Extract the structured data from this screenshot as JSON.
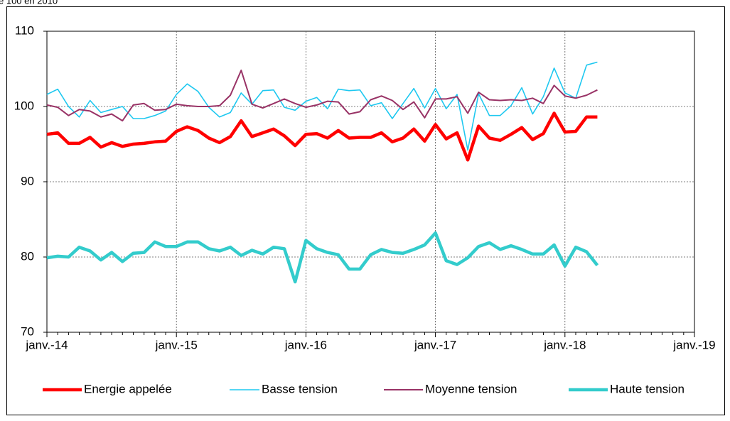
{
  "chart_data": {
    "type": "line",
    "subtitle": "e 100 en 2010",
    "categories": [
      "janv.-14",
      null,
      null,
      null,
      null,
      null,
      null,
      null,
      null,
      null,
      null,
      null,
      "janv.-15",
      null,
      null,
      null,
      null,
      null,
      null,
      null,
      null,
      null,
      null,
      null,
      "janv.-16",
      null,
      null,
      null,
      null,
      null,
      null,
      null,
      null,
      null,
      null,
      null,
      "janv.-17",
      null,
      null,
      null,
      null,
      null,
      null,
      null,
      null,
      null,
      null,
      null,
      "janv.-18",
      null,
      null,
      null,
      null,
      null,
      null,
      null,
      null,
      null,
      null,
      null,
      "janv.-19"
    ],
    "series": [
      {
        "name": "Energie appelée",
        "color": "#ff0000",
        "values": [
          96.3,
          96.5,
          95.1,
          95.1,
          95.9,
          94.6,
          95.2,
          94.7,
          95.0,
          95.1,
          95.3,
          95.4,
          96.7,
          97.3,
          96.8,
          95.8,
          95.2,
          96.0,
          98.1,
          96.0,
          96.5,
          97.0,
          96.1,
          94.8,
          96.3,
          96.4,
          95.8,
          96.8,
          95.8,
          95.9,
          95.9,
          96.5,
          95.3,
          95.8,
          97.0,
          95.4,
          97.6,
          95.7,
          96.5,
          92.9,
          97.4,
          95.8,
          95.5,
          96.3,
          97.2,
          95.6,
          96.4,
          99.1,
          96.6,
          96.7,
          98.6,
          98.6,
          null,
          null,
          null,
          null,
          null,
          null,
          null,
          null,
          null
        ]
      },
      {
        "name": "Basse tension",
        "color": "#1ec8f0",
        "values": [
          101.6,
          102.3,
          100.0,
          98.6,
          100.8,
          99.2,
          99.6,
          100.0,
          98.4,
          98.4,
          98.8,
          99.4,
          101.6,
          103.0,
          102.0,
          99.9,
          98.6,
          99.2,
          101.8,
          100.3,
          102.1,
          102.2,
          99.9,
          99.5,
          100.7,
          101.2,
          99.7,
          102.3,
          102.1,
          102.2,
          100.1,
          100.5,
          98.4,
          100.4,
          102.4,
          99.8,
          102.4,
          99.7,
          101.6,
          94.2,
          101.7,
          98.8,
          98.8,
          100.1,
          102.5,
          99.0,
          101.3,
          105.1,
          101.8,
          101.1,
          105.5,
          105.9,
          null,
          null,
          null,
          null,
          null,
          null,
          null,
          null,
          null
        ]
      },
      {
        "name": "Moyenne tension",
        "color": "#993366",
        "values": [
          100.2,
          99.9,
          98.8,
          99.6,
          99.4,
          98.6,
          99.0,
          98.1,
          100.2,
          100.4,
          99.5,
          99.6,
          100.3,
          100.1,
          100.0,
          100.0,
          100.1,
          101.5,
          104.8,
          100.3,
          99.8,
          100.4,
          101.0,
          100.4,
          99.9,
          100.2,
          100.7,
          100.6,
          99.0,
          99.3,
          100.9,
          101.4,
          100.8,
          99.6,
          100.6,
          98.5,
          101.0,
          101.0,
          101.3,
          99.1,
          101.9,
          100.9,
          100.8,
          100.9,
          100.8,
          101.1,
          100.4,
          102.8,
          101.4,
          101.1,
          101.5,
          102.2,
          null,
          null,
          null,
          null,
          null,
          null,
          null,
          null,
          null
        ]
      },
      {
        "name": "Haute tension",
        "color": "#33cccc",
        "values": [
          79.9,
          80.1,
          80.0,
          81.3,
          80.8,
          79.6,
          80.6,
          79.4,
          80.5,
          80.6,
          82.0,
          81.4,
          81.4,
          82.0,
          82.0,
          81.1,
          80.8,
          81.3,
          80.2,
          80.9,
          80.4,
          81.3,
          81.1,
          76.7,
          82.2,
          81.1,
          80.6,
          80.3,
          78.4,
          78.4,
          80.3,
          81.0,
          80.6,
          80.5,
          81.0,
          81.6,
          83.2,
          79.5,
          79.0,
          79.9,
          81.4,
          81.9,
          81.0,
          81.5,
          81.0,
          80.4,
          80.4,
          81.6,
          78.8,
          81.3,
          80.7,
          78.9,
          null,
          null,
          null,
          null,
          null,
          null,
          null,
          null,
          null
        ]
      }
    ],
    "ylim": [
      70,
      110
    ],
    "yticks": [
      70,
      80,
      90,
      100,
      110
    ],
    "grid": true
  }
}
